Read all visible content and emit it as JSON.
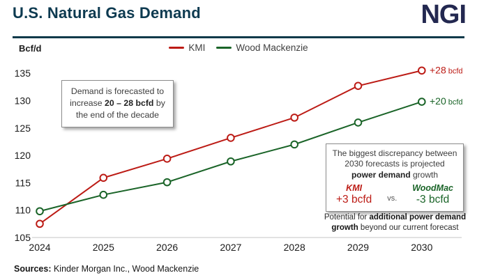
{
  "header": {
    "title": "U.S. Natural Gas Demand",
    "logo_text": "NGI"
  },
  "unit_label": "Bcf/d",
  "chart_data": {
    "type": "line",
    "x_categories": [
      "2024",
      "2025",
      "2026",
      "2027",
      "2028",
      "2029",
      "2030"
    ],
    "series": [
      {
        "name": "KMI",
        "color": "#bc1b15",
        "values": [
          107.5,
          115.9,
          119.4,
          123.2,
          126.9,
          132.7,
          135.5
        ],
        "end_label_value": "+28",
        "end_label_unit": "bcfd"
      },
      {
        "name": "Wood Mackenzie",
        "color": "#1a6428",
        "values": [
          109.8,
          112.8,
          115.1,
          118.9,
          122.0,
          126.0,
          129.8
        ],
        "end_label_value": "+20",
        "end_label_unit": "bcfd"
      }
    ],
    "ylabel": "Bcf/d",
    "ylim": [
      105,
      135
    ],
    "yticks": [
      105,
      110,
      115,
      120,
      125,
      130,
      135
    ],
    "grid": "baseline-only",
    "legend_position": "top-center",
    "marker": "open-circle"
  },
  "annotation_left": {
    "line1": "Demand is forecasted to",
    "line2_pre": "increase ",
    "line2_bold": "20 – 28 bcfd",
    "line2_post": " by",
    "line3": "the end of the decade"
  },
  "annotation_right": {
    "line1": "The biggest discrepancy between",
    "line2": "2030 forecasts is projected",
    "line3_bold": "power demand",
    "line3_post": " growth",
    "kmi_label": "KMI",
    "kmi_value": "+3 bcfd",
    "vs_label": "vs.",
    "woodmac_label": "WoodMac",
    "woodmac_value": "-3 bcfd"
  },
  "annotation_note": {
    "line1_pre": "Potential for ",
    "line1_bold": "additional power demand",
    "line2_bold": "growth",
    "line2_post": " beyond our current forecast"
  },
  "footer": {
    "sources_label": "Sources:",
    "sources_text": " Kinder Morgan Inc., Wood Mackenzie"
  },
  "colors": {
    "title_teal": "#0d3a50",
    "rule_teal": "#0d3a4a",
    "logo_navy": "#232850",
    "kmi_red": "#bc1b15",
    "woodmac_green": "#1a6428",
    "baseline_gray": "#d9d9d9"
  }
}
